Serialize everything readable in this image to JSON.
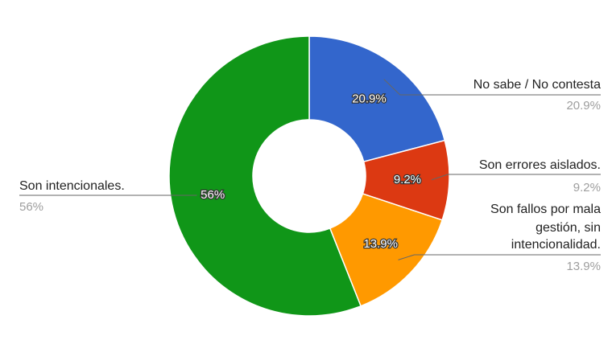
{
  "chart_data": {
    "type": "pie",
    "donut": true,
    "slices": [
      {
        "label": "No sabe / No contesta",
        "value": 20.9,
        "display": "20.9%",
        "color": "#3366cc"
      },
      {
        "label": "Son errores aislados.",
        "value": 9.2,
        "display": "9.2%",
        "color": "#dc3912"
      },
      {
        "label": "Son fallos por mala gestión, sin intencionalidad.",
        "value": 13.9,
        "display": "13.9%",
        "color": "#ff9900"
      },
      {
        "label": "Son intencionales.",
        "value": 56,
        "display": "56%",
        "color": "#109618"
      }
    ],
    "legend": "labeled-callouts"
  }
}
